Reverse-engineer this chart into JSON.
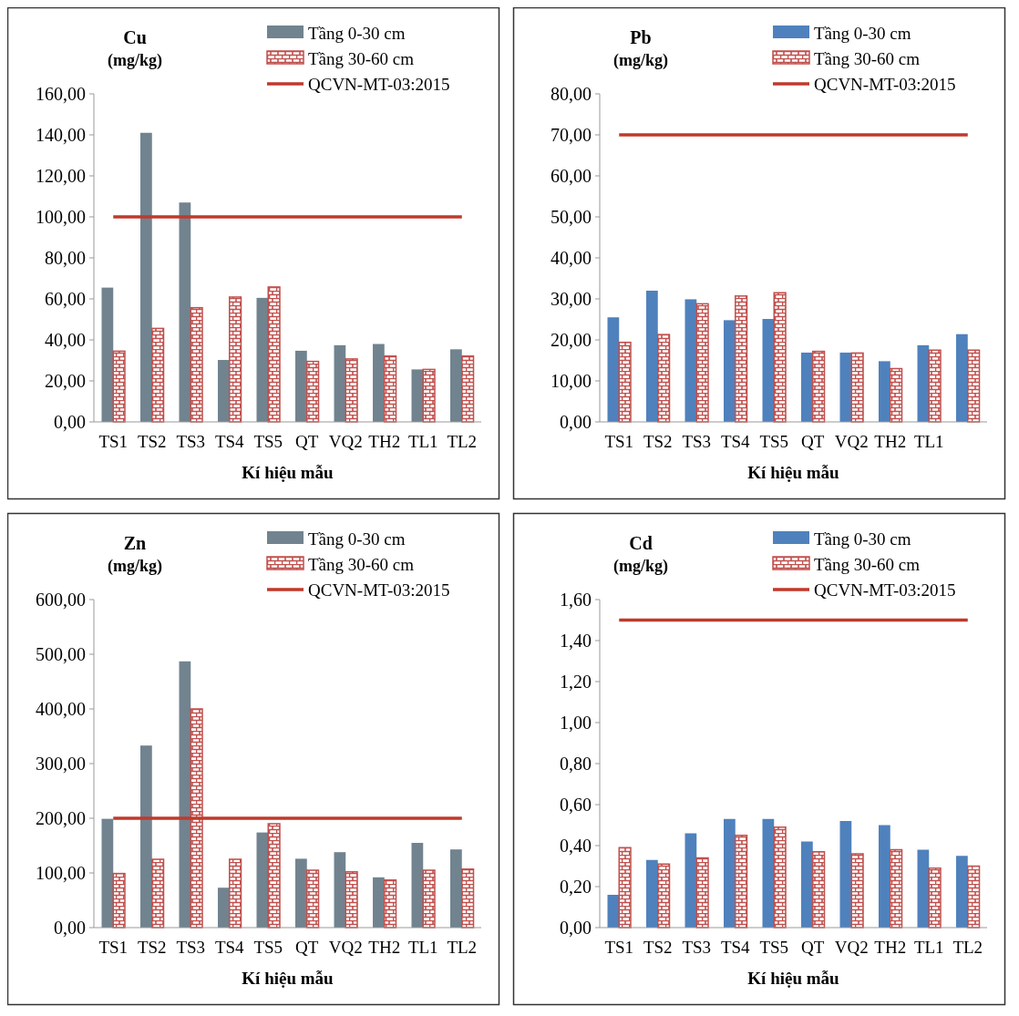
{
  "chart_data": [
    {
      "type": "bar",
      "title": "Cu",
      "ylabel": "(mg/kg)",
      "xlabel": "Kí hiệu mẫu",
      "categories": [
        "TS1",
        "TS2",
        "TS3",
        "TS4",
        "TS5",
        "QT",
        "VQ2",
        "TH2",
        "TL1",
        "TL2"
      ],
      "series": [
        {
          "name": "Tầng 0-30 cm",
          "color": "#71838f",
          "values": [
            65.5,
            141,
            107,
            30.2,
            60.5,
            34.7,
            37.4,
            38,
            25.6,
            35.4
          ]
        },
        {
          "name": "Tầng 30-60 cm",
          "color": "#c0504d",
          "values": [
            34.5,
            45.6,
            55.7,
            60.9,
            65.8,
            29.5,
            30.7,
            32.1,
            25.6,
            32.1
          ]
        },
        {
          "name": "QCVN-MT-03:2015",
          "type": "line",
          "color": "#c0392b",
          "values": [
            100,
            100,
            100,
            100,
            100,
            100,
            100,
            100,
            100,
            100
          ]
        }
      ],
      "ylim": [
        0,
        160
      ],
      "yticks": [
        {
          "value": 0,
          "label": "0,00"
        },
        {
          "value": 20,
          "label": "20,00"
        },
        {
          "value": 40,
          "label": "40,00"
        },
        {
          "value": 60,
          "label": "60,00"
        },
        {
          "value": 80,
          "label": "80,00"
        },
        {
          "value": 100,
          "label": "100,00"
        },
        {
          "value": 120,
          "label": "120,00"
        },
        {
          "value": 140,
          "label": "140,00"
        },
        {
          "value": 160,
          "label": "160,00"
        }
      ],
      "grid": false,
      "legend": "top right"
    },
    {
      "type": "bar",
      "title": "Pb",
      "ylabel": "(mg/kg)",
      "xlabel": "Kí hiệu mẫu",
      "categories": [
        "TS1",
        "TS2",
        "TS3",
        "TS4",
        "TS5",
        "QT",
        "VQ2",
        "TH2",
        "TL1",
        null
      ],
      "series": [
        {
          "name": "Tầng 0-30 cm",
          "color": "#4f81bd",
          "values": [
            25.5,
            32,
            29.9,
            24.8,
            25.1,
            16.9,
            16.9,
            14.8,
            18.7,
            21.4
          ]
        },
        {
          "name": "Tầng 30-60 cm",
          "color": "#c0504d",
          "values": [
            19.4,
            21.3,
            28.8,
            30.7,
            31.5,
            17.2,
            16.8,
            13,
            17.5,
            17.5
          ]
        },
        {
          "name": "QCVN-MT-03:2015",
          "type": "line",
          "color": "#c0392b",
          "values": [
            70,
            70,
            70,
            70,
            70,
            70,
            70,
            70,
            70,
            70
          ]
        }
      ],
      "ylim": [
        0,
        80
      ],
      "yticks": [
        {
          "value": 0,
          "label": "0,00"
        },
        {
          "value": 10,
          "label": "10,00"
        },
        {
          "value": 20,
          "label": "20,00"
        },
        {
          "value": 30,
          "label": "30,00"
        },
        {
          "value": 40,
          "label": "40,00"
        },
        {
          "value": 50,
          "label": "50,00"
        },
        {
          "value": 60,
          "label": "60,00"
        },
        {
          "value": 70,
          "label": "70,00"
        },
        {
          "value": 80,
          "label": "80,00"
        }
      ],
      "grid": false,
      "legend": "top right"
    },
    {
      "type": "bar",
      "title": "Zn",
      "ylabel": "(mg/kg)",
      "xlabel": "Kí hiệu mẫu",
      "categories": [
        "TS1",
        "TS2",
        "TS3",
        "TS4",
        "TS5",
        "QT",
        "VQ2",
        "TH2",
        "TL1",
        "TL2"
      ],
      "series": [
        {
          "name": "Tầng 0-30 cm",
          "color": "#71838f",
          "values": [
            199,
            333,
            487,
            73,
            174,
            126,
            138,
            92,
            155,
            143
          ]
        },
        {
          "name": "Tầng 30-60 cm",
          "color": "#c0504d",
          "values": [
            99,
            125,
            400,
            125,
            190,
            105,
            102,
            87,
            105,
            107
          ]
        },
        {
          "name": "QCVN-MT-03:2015",
          "type": "line",
          "color": "#c0392b",
          "values": [
            200,
            200,
            200,
            200,
            200,
            200,
            200,
            200,
            200,
            200
          ]
        }
      ],
      "ylim": [
        0,
        600
      ],
      "yticks": [
        {
          "value": 0,
          "label": "0,00"
        },
        {
          "value": 100,
          "label": "100,00"
        },
        {
          "value": 200,
          "label": "200,00"
        },
        {
          "value": 300,
          "label": "300,00"
        },
        {
          "value": 400,
          "label": "400,00"
        },
        {
          "value": 500,
          "label": "500,00"
        },
        {
          "value": 600,
          "label": "600,00"
        }
      ],
      "grid": false,
      "legend": "top right"
    },
    {
      "type": "bar",
      "title": "Cd",
      "ylabel": "(mg/kg)",
      "xlabel": "Kí hiệu mẫu",
      "categories": [
        "TS1",
        "TS2",
        "TS3",
        "TS4",
        "TS5",
        "QT",
        "VQ2",
        "TH2",
        "TL1",
        "TL2"
      ],
      "series": [
        {
          "name": "Tầng 0-30 cm",
          "color": "#4f81bd",
          "values": [
            0.16,
            0.33,
            0.46,
            0.53,
            0.53,
            0.42,
            0.52,
            0.5,
            0.38,
            0.35
          ]
        },
        {
          "name": "Tầng 30-60 cm",
          "color": "#c0504d",
          "values": [
            0.39,
            0.31,
            0.34,
            0.45,
            0.49,
            0.37,
            0.36,
            0.38,
            0.29,
            0.3
          ]
        },
        {
          "name": "QCVN-MT-03:2015",
          "type": "line",
          "color": "#c0392b",
          "values": [
            1.5,
            1.5,
            1.5,
            1.5,
            1.5,
            1.5,
            1.5,
            1.5,
            1.5,
            1.5
          ]
        }
      ],
      "ylim": [
        0,
        1.6
      ],
      "yticks": [
        {
          "value": 0,
          "label": "0,00"
        },
        {
          "value": 0.2,
          "label": "0,20"
        },
        {
          "value": 0.4,
          "label": "0,40"
        },
        {
          "value": 0.6,
          "label": "0,60"
        },
        {
          "value": 0.8,
          "label": "0,80"
        },
        {
          "value": 1,
          "label": "1,00"
        },
        {
          "value": 1.2,
          "label": "1,20"
        },
        {
          "value": 1.4,
          "label": "1,40"
        },
        {
          "value": 1.6,
          "label": "1,60"
        }
      ],
      "grid": false,
      "legend": "top right"
    }
  ]
}
